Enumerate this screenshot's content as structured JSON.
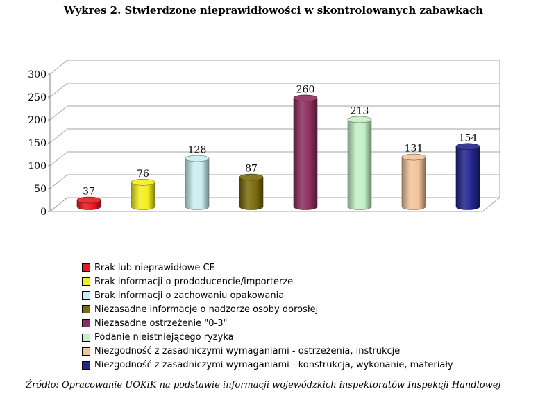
{
  "chart_data": {
    "type": "bar",
    "title": "Wykres 2. Stwierdzone nieprawidłowości w skontrolowanych zabawkach",
    "ylim": [
      0,
      300
    ],
    "yticks": [
      "0",
      "50",
      "100",
      "150",
      "200",
      "250",
      "300"
    ],
    "grid": true,
    "legend_position": "bottom",
    "series": [
      {
        "name": "Brak lub nieprawidłowe CE",
        "value": 37,
        "label": "37",
        "color": "#e8191e"
      },
      {
        "name": "Brak informacji o prododucencie/importerze",
        "value": 76,
        "label": "76",
        "color": "#f2ee1f"
      },
      {
        "name": "Brak informacji o zachowaniu opakowania",
        "value": 128,
        "label": "128",
        "color": "#c9eef2"
      },
      {
        "name": "Niezasadne informacje o nadzorze osoby dorosłej",
        "value": 87,
        "label": "87",
        "color": "#7a6a0c"
      },
      {
        "name": "Niezasadne ostrzeżenie \"0-3\"",
        "value": 260,
        "label": "260",
        "color": "#8c2e5e"
      },
      {
        "name": "Podanie nieistniejącego ryzyka",
        "value": 213,
        "label": "213",
        "color": "#c3f0c7"
      },
      {
        "name": "Niezgodność z zasadniczymi wymaganiami - ostrzeżenia, instrukcje",
        "value": 131,
        "label": "131",
        "color": "#f3c49a"
      },
      {
        "name": "Niezgodność z zasadniczymi wymaganiami - konstrukcja, wykonanie, materiały",
        "value": 154,
        "label": "154",
        "color": "#23248c"
      }
    ]
  },
  "source": "Źródło: Opracowanie UOKiK na podstawie informacji wojewódzkich inspektoratów Inspekcji Handlowej"
}
